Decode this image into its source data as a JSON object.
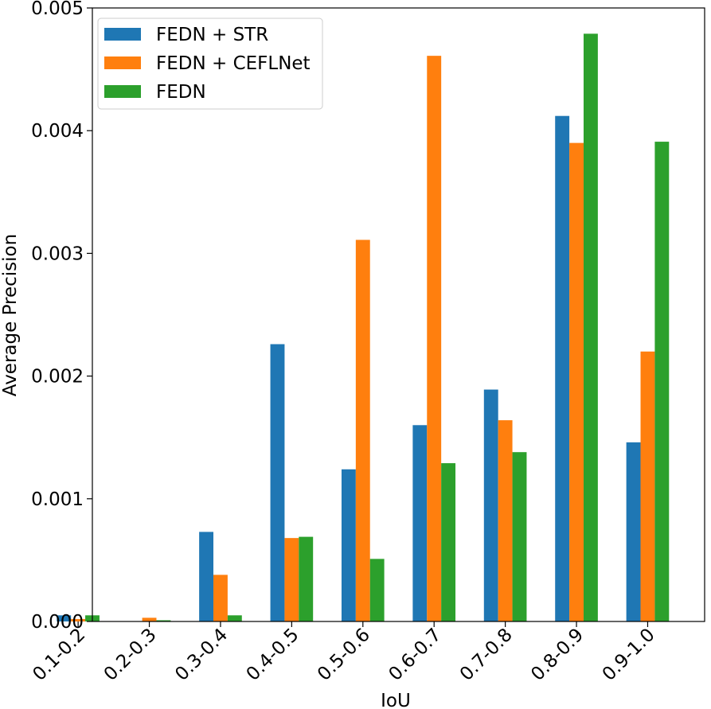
{
  "chart_data": {
    "type": "bar",
    "title": "",
    "xlabel": "IoU",
    "ylabel": "Average Precision",
    "ylim": [
      0,
      0.005
    ],
    "yticks": [
      "0.000",
      "0.001",
      "0.002",
      "0.003",
      "0.004",
      "0.005"
    ],
    "grid": false,
    "legend_position": "top-left",
    "categories": [
      "0.1-0.2",
      "0.2-0.3",
      "0.3-0.4",
      "0.4-0.5",
      "0.5-0.6",
      "0.6-0.7",
      "0.7-0.8",
      "0.8-0.9",
      "0.9-1.0"
    ],
    "series": [
      {
        "name": "FEDN + STR",
        "color": "#1f77b4",
        "values": [
          5e-05,
          0.0,
          0.00073,
          0.00226,
          0.00124,
          0.0016,
          0.00189,
          0.00412,
          0.00146
        ]
      },
      {
        "name": "FEDN + CEFLNet",
        "color": "#ff7f0e",
        "values": [
          2e-05,
          3e-05,
          0.00038,
          0.00068,
          0.00311,
          0.00461,
          0.00164,
          0.0039,
          0.0022
        ]
      },
      {
        "name": "FEDN",
        "color": "#2ca02c",
        "values": [
          5e-05,
          1e-05,
          5e-05,
          0.00069,
          0.00051,
          0.00129,
          0.00138,
          0.00479,
          0.00391
        ]
      }
    ]
  }
}
